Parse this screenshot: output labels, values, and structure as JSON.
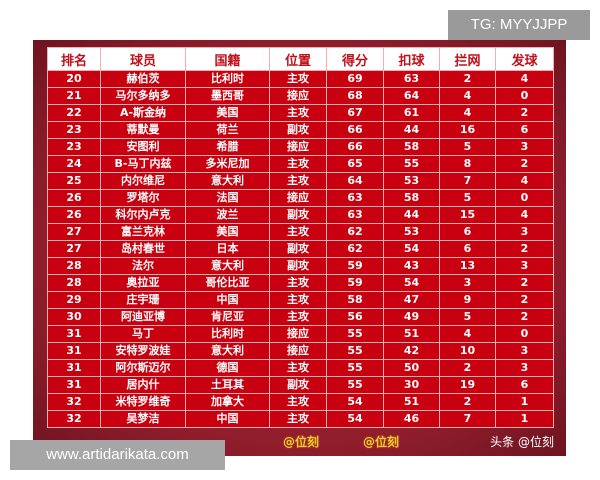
{
  "tg_label": "TG: MYYJJPP",
  "site_label": "www.artidarikata.com",
  "watermarks": {
    "mid1": "@位刻",
    "mid2": "@位刻",
    "corner": "头条 @位刻"
  },
  "table": {
    "headers": [
      "排名",
      "球员",
      "国籍",
      "位置",
      "得分",
      "扣球",
      "拦网",
      "发球"
    ],
    "rows": [
      [
        "20",
        "赫伯茨",
        "比利时",
        "主攻",
        "69",
        "63",
        "2",
        "4"
      ],
      [
        "21",
        "马尔多纳多",
        "墨西哥",
        "接应",
        "68",
        "64",
        "4",
        "0"
      ],
      [
        "22",
        "A-斯金纳",
        "美国",
        "主攻",
        "67",
        "61",
        "4",
        "2"
      ],
      [
        "23",
        "蒂默曼",
        "荷兰",
        "副攻",
        "66",
        "44",
        "16",
        "6"
      ],
      [
        "23",
        "安图利",
        "希腊",
        "接应",
        "66",
        "58",
        "5",
        "3"
      ],
      [
        "24",
        "B-马丁内兹",
        "多米尼加",
        "主攻",
        "65",
        "55",
        "8",
        "2"
      ],
      [
        "25",
        "内尔维尼",
        "意大利",
        "主攻",
        "64",
        "53",
        "7",
        "4"
      ],
      [
        "26",
        "罗塔尔",
        "法国",
        "接应",
        "63",
        "58",
        "5",
        "0"
      ],
      [
        "26",
        "科尔内卢克",
        "波兰",
        "副攻",
        "63",
        "44",
        "15",
        "4"
      ],
      [
        "27",
        "富兰克林",
        "美国",
        "主攻",
        "62",
        "53",
        "6",
        "3"
      ],
      [
        "27",
        "岛村春世",
        "日本",
        "副攻",
        "62",
        "54",
        "6",
        "2"
      ],
      [
        "28",
        "法尔",
        "意大利",
        "副攻",
        "59",
        "43",
        "13",
        "3"
      ],
      [
        "28",
        "奥拉亚",
        "哥伦比亚",
        "主攻",
        "59",
        "54",
        "3",
        "2"
      ],
      [
        "29",
        "庄宇珊",
        "中国",
        "主攻",
        "58",
        "47",
        "9",
        "2"
      ],
      [
        "30",
        "阿迪亚博",
        "肯尼亚",
        "主攻",
        "56",
        "49",
        "5",
        "2"
      ],
      [
        "31",
        "马丁",
        "比利时",
        "接应",
        "55",
        "51",
        "4",
        "0"
      ],
      [
        "31",
        "安特罗波娃",
        "意大利",
        "接应",
        "55",
        "42",
        "10",
        "3"
      ],
      [
        "31",
        "阿尔斯迈尔",
        "德国",
        "主攻",
        "55",
        "50",
        "2",
        "3"
      ],
      [
        "31",
        "居内什",
        "土耳其",
        "副攻",
        "55",
        "30",
        "19",
        "6"
      ],
      [
        "32",
        "米特罗维奇",
        "加拿大",
        "主攻",
        "54",
        "51",
        "2",
        "1"
      ],
      [
        "32",
        "吴梦洁",
        "中国",
        "主攻",
        "54",
        "46",
        "7",
        "1"
      ]
    ]
  }
}
